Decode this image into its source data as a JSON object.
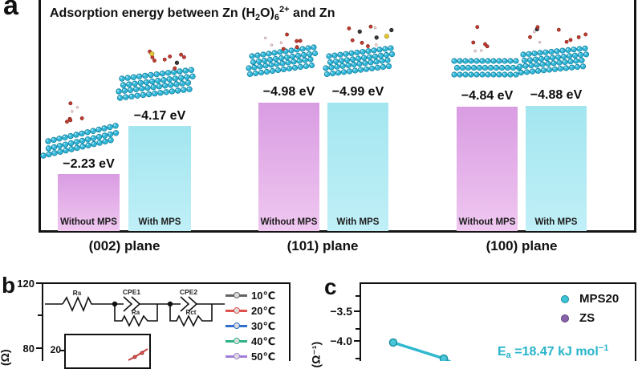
{
  "panel_a": {
    "label": "a",
    "title": {
      "p1": "Adsorption energy between Zn (H",
      "sub1": "2",
      "p2": "O)",
      "sub2": "6",
      "sup1": "2+",
      "p3": " and Zn"
    },
    "colors": {
      "without_mps_bar": "#e0a6e8",
      "with_mps_bar": "#aae8f2",
      "atom_cyan": "#34b9da"
    },
    "groups": [
      {
        "plane": "(002) plane",
        "bars": [
          {
            "label": "Without MPS",
            "value": "−2.23 eV"
          },
          {
            "label": "With MPS",
            "value": "−4.17 eV"
          }
        ]
      },
      {
        "plane": "(101) plane",
        "bars": [
          {
            "label": "Without MPS",
            "value": "−4.98 eV"
          },
          {
            "label": "With MPS",
            "value": "−4.99 eV"
          }
        ]
      },
      {
        "plane": "(100) plane",
        "bars": [
          {
            "label": "Without MPS",
            "value": "−4.84 eV"
          },
          {
            "label": "With MPS",
            "value": "−4.88 eV"
          }
        ]
      }
    ]
  },
  "panel_b": {
    "label": "b",
    "yticks": [
      "120",
      "80"
    ],
    "ylabel_fragment": "(Ω)",
    "inset_tick": "20",
    "circuit": {
      "rs": "Rs",
      "cpe1": "CPE1",
      "ra": "Ra",
      "cpe2": "CPE2",
      "rct": "Rct"
    },
    "legend": [
      {
        "label": "10℃",
        "color": "#636363"
      },
      {
        "label": "20℃",
        "color": "#e0524e"
      },
      {
        "label": "30℃",
        "color": "#2e6fce"
      },
      {
        "label": "40℃",
        "color": "#2fb287"
      },
      {
        "label": "50℃",
        "color": "#a07fd8"
      }
    ]
  },
  "panel_c": {
    "label": "c",
    "yticks": [
      "−3.5",
      "−4.0"
    ],
    "ylabel_fragment": "(Ω⁻¹)",
    "legend": [
      {
        "label": "MPS20",
        "color": "#3bc3d6"
      },
      {
        "label": "ZS",
        "color": "#8a63ad"
      }
    ],
    "annotation": {
      "p1": "E",
      "sub": "a",
      "p2": " =18.47 kJ mol",
      "sup": "−1"
    },
    "accent": "#2fb9cf"
  },
  "chart_data": [
    {
      "type": "bar",
      "panel": "a",
      "title": "Adsorption energy between Zn (H2O)6 2+ and Zn",
      "categories": [
        "(002) plane",
        "(101) plane",
        "(100) plane"
      ],
      "series": [
        {
          "name": "Without MPS",
          "values": [
            -2.23,
            -4.98,
            -4.84
          ]
        },
        {
          "name": "With MPS",
          "values": [
            -4.17,
            -4.99,
            -4.88
          ]
        }
      ],
      "unit": "eV",
      "bar_colors": {
        "Without MPS": "#e0a6e8",
        "With MPS": "#aae8f2"
      },
      "value_labels": [
        "−2.23 eV",
        "−4.17 eV",
        "−4.98 eV",
        "−4.99 eV",
        "−4.84 eV",
        "−4.88 eV"
      ]
    },
    {
      "type": "line",
      "panel": "b",
      "description": "EIS Nyquist plot (clipped at bottom of screenshot); equivalent circuit Rs-(CPE1||Ra)-(CPE2||Rct) shown inside",
      "ylabel_visible": "(Ω)",
      "yticks_visible": [
        120,
        80
      ],
      "ylim_visible_top": 120,
      "legend": [
        "10℃",
        "20℃",
        "30℃",
        "40℃",
        "50℃"
      ],
      "legend_colors": [
        "#636363",
        "#e0524e",
        "#2e6fce",
        "#2fb287",
        "#a07fd8"
      ],
      "inset": {
        "ytick_visible": 20
      }
    },
    {
      "type": "scatter",
      "panel": "c",
      "description": "Arrhenius plot (clipped); cyan MPS20 line descending",
      "ylabel_visible": "(Ω⁻¹)",
      "yticks_visible": [
        -3.5,
        -4.0
      ],
      "legend": [
        "MPS20",
        "ZS"
      ],
      "legend_colors": [
        "#3bc3d6",
        "#8a63ad"
      ],
      "annotation": "Ea =18.47 kJ mol−1",
      "series": [
        {
          "name": "MPS20",
          "visible_y_values": [
            -4.01,
            -4.15
          ]
        }
      ]
    }
  ]
}
